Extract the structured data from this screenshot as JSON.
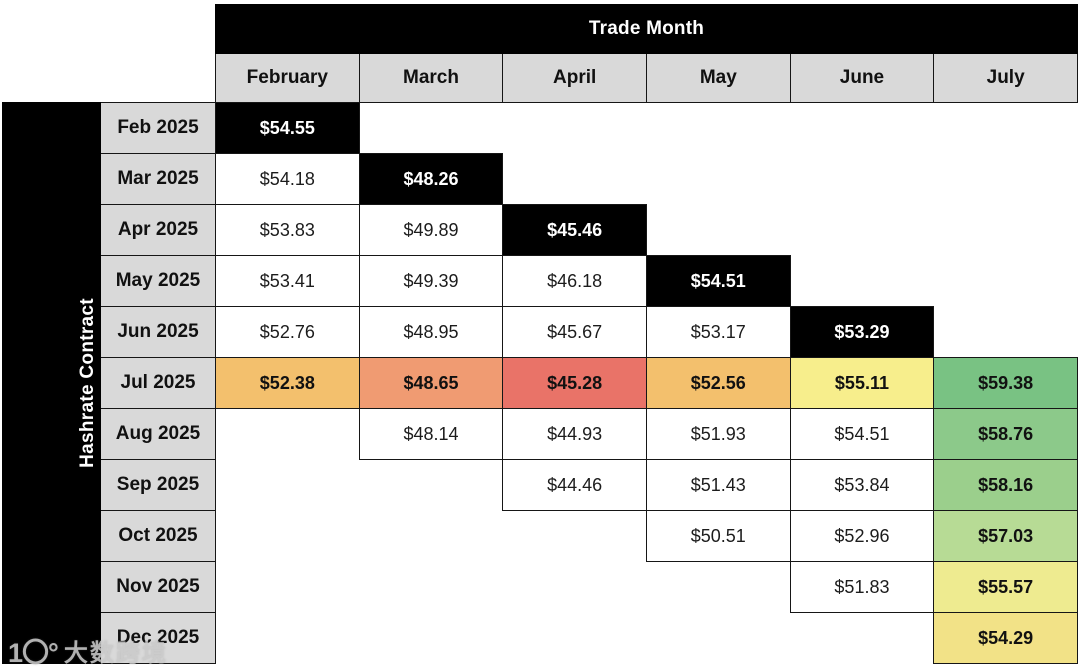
{
  "header": {
    "trade_month_label": "Trade Month",
    "columns": [
      "February",
      "March",
      "April",
      "May",
      "June",
      "July"
    ]
  },
  "axis": {
    "label": "Hashrate Contract"
  },
  "watermark": {
    "logo": "1〇°",
    "text": "大数跨境"
  },
  "colors": {
    "header_bg": "#d9d9d9",
    "diagonal_bg": "#000000",
    "border": "#161616",
    "heat_orange": "#f3c06d",
    "heat_salmon": "#f09b72",
    "heat_red": "#e97368",
    "heat_yellow": "#f7ee8c",
    "heat_green": "#79c283"
  },
  "chart_data": {
    "type": "table",
    "title": "Trade Month",
    "row_axis": "Hashrate Contract",
    "columns": [
      "February",
      "March",
      "April",
      "May",
      "June",
      "July"
    ],
    "rows": [
      {
        "label": "Feb 2025",
        "cells": [
          {
            "value": "$54.55",
            "style": "black"
          },
          null,
          null,
          null,
          null,
          null
        ]
      },
      {
        "label": "Mar 2025",
        "cells": [
          {
            "value": "$54.18"
          },
          {
            "value": "$48.26",
            "style": "black"
          },
          null,
          null,
          null,
          null
        ]
      },
      {
        "label": "Apr 2025",
        "cells": [
          {
            "value": "$53.83"
          },
          {
            "value": "$49.89"
          },
          {
            "value": "$45.46",
            "style": "black"
          },
          null,
          null,
          null
        ]
      },
      {
        "label": "May 2025",
        "cells": [
          {
            "value": "$53.41"
          },
          {
            "value": "$49.39"
          },
          {
            "value": "$46.18"
          },
          {
            "value": "$54.51",
            "style": "black"
          },
          null,
          null
        ]
      },
      {
        "label": "Jun 2025",
        "cells": [
          {
            "value": "$52.76"
          },
          {
            "value": "$48.95"
          },
          {
            "value": "$45.67"
          },
          {
            "value": "$53.17"
          },
          {
            "value": "$53.29",
            "style": "black"
          },
          null
        ]
      },
      {
        "label": "Jul 2025",
        "cells": [
          {
            "value": "$52.38",
            "bg": "#f3c06d"
          },
          {
            "value": "$48.65",
            "bg": "#f09b72"
          },
          {
            "value": "$45.28",
            "bg": "#e97368"
          },
          {
            "value": "$52.56",
            "bg": "#f3c06d"
          },
          {
            "value": "$55.11",
            "bg": "#f7ee8c"
          },
          {
            "value": "$59.38",
            "bg": "#79c283"
          }
        ]
      },
      {
        "label": "Aug 2025",
        "cells": [
          null,
          {
            "value": "$48.14"
          },
          {
            "value": "$44.93"
          },
          {
            "value": "$51.93"
          },
          {
            "value": "$54.51"
          },
          {
            "value": "$58.76",
            "bg": "#8cc98a"
          }
        ]
      },
      {
        "label": "Sep 2025",
        "cells": [
          null,
          null,
          {
            "value": "$44.46"
          },
          {
            "value": "$51.43"
          },
          {
            "value": "$53.84"
          },
          {
            "value": "$58.16",
            "bg": "#9bcf8c"
          }
        ]
      },
      {
        "label": "Oct 2025",
        "cells": [
          null,
          null,
          null,
          {
            "value": "$50.51"
          },
          {
            "value": "$52.96"
          },
          {
            "value": "$57.03",
            "bg": "#b7db95"
          }
        ]
      },
      {
        "label": "Nov 2025",
        "cells": [
          null,
          null,
          null,
          null,
          {
            "value": "$51.83"
          },
          {
            "value": "$55.57",
            "bg": "#eeeb90"
          }
        ]
      },
      {
        "label": "Dec 2025",
        "cells": [
          null,
          null,
          null,
          null,
          null,
          {
            "value": "$54.29",
            "bg": "#f2e287"
          }
        ]
      }
    ]
  }
}
